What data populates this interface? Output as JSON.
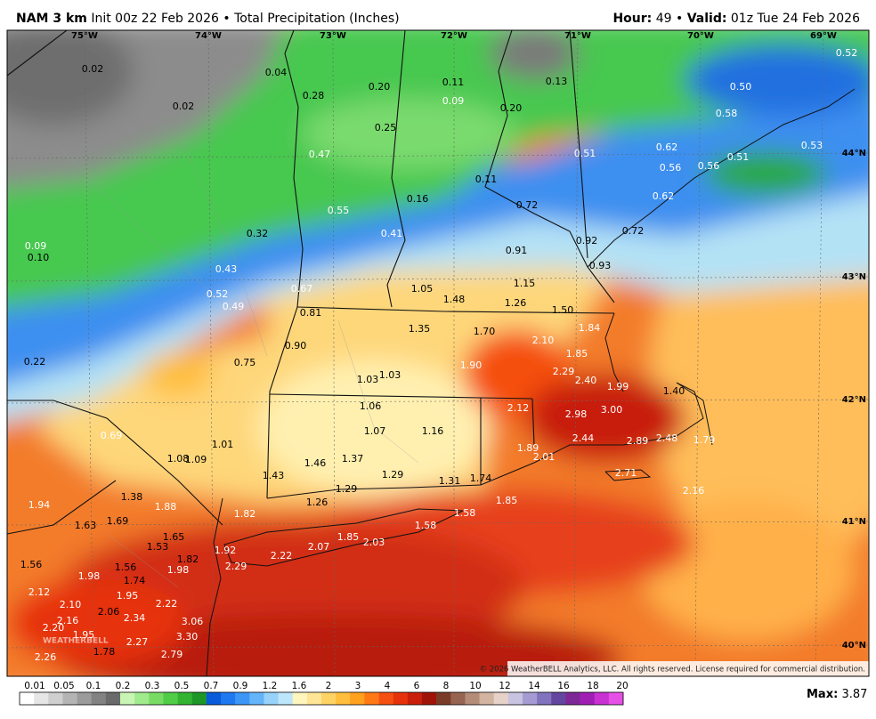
{
  "header": {
    "model": "NAM 3 km",
    "init": "Init 00z 22 Feb 2026",
    "separator": "•",
    "field": "Total Precipitation (Inches)",
    "hour_label": "Hour:",
    "hour": "49",
    "valid_label": "Valid:",
    "valid": "01z Tue 24 Feb 2026"
  },
  "longitudes": [
    "75°W",
    "74°W",
    "73°W",
    "72°W",
    "71°W",
    "70°W",
    "69°W"
  ],
  "latitudes": [
    "44°N",
    "43°N",
    "42°N",
    "41°N",
    "40°N"
  ],
  "map_labels": [
    "0.02",
    "0.02",
    "0.04",
    "0.28",
    "0.20",
    "0.11",
    "0.13",
    "0.52",
    "0.50",
    "0.58",
    "0.09",
    "0.20",
    "0.25",
    "0.47",
    "0.51",
    "0.62",
    "0.53",
    "0.56",
    "0.56",
    "0.51",
    "0.11",
    "0.16",
    "0.72",
    "0.62",
    "0.55",
    "0.41",
    "0.92",
    "0.72",
    "0.09",
    "0.10",
    "0.32",
    "0.91",
    "0.93",
    "0.43",
    "0.52",
    "0.49",
    "0.67",
    "1.05",
    "1.15",
    "1.48",
    "1.26",
    "1.50",
    "0.81",
    "1.35",
    "1.70",
    "1.84",
    "0.90",
    "2.10",
    "1.85",
    "0.22",
    "0.75",
    "1.90",
    "2.29",
    "2.40",
    "1.03",
    "1.03",
    "1.99",
    "1.40",
    "1.06",
    "2.12",
    "2.98",
    "3.00",
    "1.07",
    "1.16",
    "0.69",
    "2.44",
    "2.89",
    "2.48",
    "1.79",
    "1.01",
    "1.08",
    "1.09",
    "1.46",
    "1.37",
    "1.89",
    "2.01",
    "1.29",
    "1.43",
    "1.31",
    "1.74",
    "2.71",
    "1.29",
    "2.16",
    "1.38",
    "1.88",
    "1.94",
    "1.26",
    "1.85",
    "1.82",
    "1.69",
    "1.63",
    "1.58",
    "1.58",
    "1.65",
    "1.53",
    "1.85",
    "2.03",
    "2.07",
    "1.92",
    "2.22",
    "1.82",
    "2.29",
    "1.56",
    "1.56",
    "1.98",
    "1.98",
    "1.74",
    "1.95",
    "2.12",
    "2.10",
    "2.22",
    "2.06",
    "2.34",
    "2.16",
    "3.06",
    "2.20",
    "1.95",
    "3.30",
    "2.27",
    "1.78",
    "2.79",
    "2.26"
  ],
  "copyright": "© 2026 WeatherBELL Analytics, LLC. All rights reserved. License required for commercial distribution.",
  "logo": "WEATHERBELL",
  "colorbar": {
    "labels": [
      "0.01",
      "0.05",
      "0.1",
      "0.2",
      "0.3",
      "0.5",
      "0.7",
      "0.9",
      "1.2",
      "1.6",
      "2",
      "3",
      "4",
      "6",
      "8",
      "10",
      "12",
      "14",
      "16",
      "18",
      "20"
    ],
    "colors": [
      "#ffffff",
      "#e6e6e6",
      "#cfcfcf",
      "#b4b4b4",
      "#9b9b9b",
      "#828282",
      "#6a6a6a",
      "#c8f5b4",
      "#a0eb8c",
      "#78dc64",
      "#50cd46",
      "#32b432",
      "#1e9628",
      "#0a5adc",
      "#1e78f0",
      "#3c96f5",
      "#64b4fa",
      "#96d2fa",
      "#bee6fa",
      "#fff5be",
      "#ffe696",
      "#ffd264",
      "#ffbe3c",
      "#ffa01e",
      "#ff7814",
      "#f5500f",
      "#e6320a",
      "#c81e0a",
      "#a01408",
      "#7a3c28",
      "#966450",
      "#b48c78",
      "#d2b4a0",
      "#e6d2c8",
      "#c8c3e1",
      "#a59bd2",
      "#8273be",
      "#6446a0",
      "#7d2896",
      "#a01eb4",
      "#c832d2",
      "#e650e6"
    ]
  },
  "max": {
    "label": "Max:",
    "value": "3.87"
  }
}
